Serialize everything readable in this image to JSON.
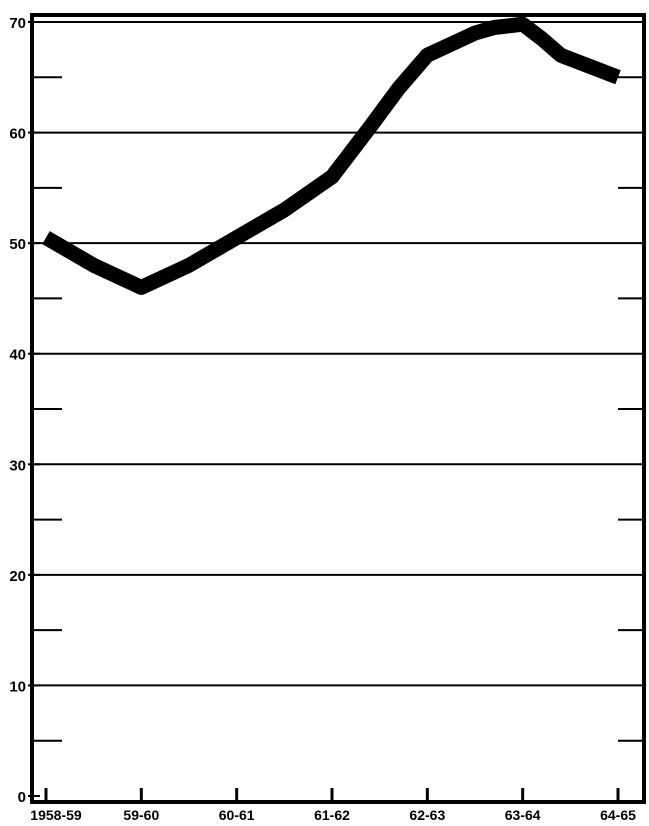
{
  "chart_data": {
    "type": "line",
    "title": "",
    "xlabel": "",
    "ylabel": "",
    "ylim": [
      0,
      70
    ],
    "yticks": [
      0,
      10,
      20,
      30,
      40,
      50,
      60,
      70
    ],
    "grid": true,
    "x_tick_labels": [
      "1958-59",
      "59-60",
      "60-61",
      "61-62",
      "62-63",
      "63-64",
      "64-65"
    ],
    "series": [
      {
        "x": [
          0,
          0.5,
          1,
          1.5,
          2,
          2.5,
          3,
          3.4,
          3.7,
          4,
          4.3,
          4.5,
          4.7,
          5,
          5.2,
          5.4,
          5.7,
          6
        ],
        "values": [
          50.5,
          48,
          46,
          48,
          50.5,
          53,
          56,
          60.5,
          64,
          67,
          68.2,
          69,
          69.5,
          69.8,
          68.5,
          67,
          66,
          65
        ]
      }
    ],
    "style": {
      "line_color": "#000000",
      "grid_color": "#000000",
      "background": "#ffffff"
    }
  }
}
